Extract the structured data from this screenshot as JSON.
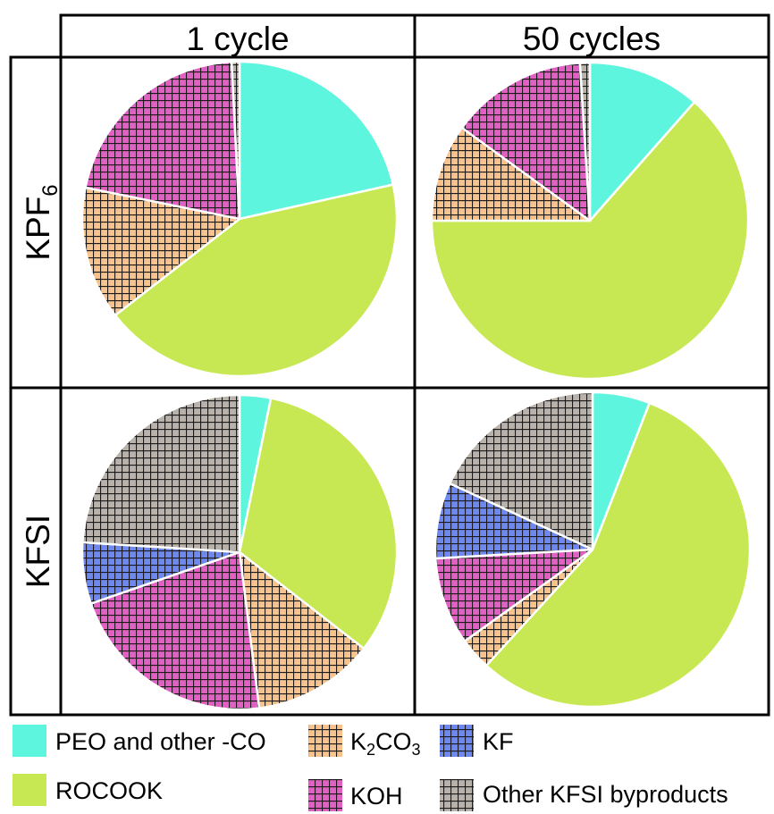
{
  "columns": [
    "1 cycle",
    "50 cycles"
  ],
  "rows": [
    {
      "label_main": "KPF",
      "label_sub": "6"
    },
    {
      "label_main": "KFSI",
      "label_sub": ""
    }
  ],
  "categories": [
    {
      "key": "peo",
      "label": "PEO and other -CO",
      "color": "#5df5dd",
      "pattern": "none"
    },
    {
      "key": "rocook",
      "label": "ROCOOK",
      "color": "#c7e852",
      "pattern": "none"
    },
    {
      "key": "k2co3",
      "label_main": "K",
      "label_sub1": "2",
      "label_mid": "CO",
      "label_sub2": "3",
      "color": "#f7c28b",
      "pattern": "grid"
    },
    {
      "key": "koh",
      "label": "KOH",
      "color": "#e25fc4",
      "pattern": "grid"
    },
    {
      "key": "kf",
      "label": "KF",
      "color": "#6f87f0",
      "pattern": "grid"
    },
    {
      "key": "other",
      "label": "Other KFSI byproducts",
      "color": "#b9b2aa",
      "pattern": "grid"
    }
  ],
  "chart_data": [
    {
      "type": "pie",
      "row": "KPF6",
      "column": "1 cycle",
      "slices": [
        {
          "name": "PEO and other -CO",
          "value": 21.5
        },
        {
          "name": "ROCOOK",
          "value": 43.0
        },
        {
          "name": "K2CO3",
          "value": 13.7
        },
        {
          "name": "KOH",
          "value": 21.0
        },
        {
          "name": "KF",
          "value": 0.0
        },
        {
          "name": "Other KFSI byproducts",
          "value": 0.8
        }
      ]
    },
    {
      "type": "pie",
      "row": "KPF6",
      "column": "50 cycles",
      "slices": [
        {
          "name": "PEO and other -CO",
          "value": 11.5
        },
        {
          "name": "ROCOOK",
          "value": 63.5
        },
        {
          "name": "K2CO3",
          "value": 10.0
        },
        {
          "name": "KOH",
          "value": 14.0
        },
        {
          "name": "KF",
          "value": 0.0
        },
        {
          "name": "Other KFSI byproducts",
          "value": 1.0
        }
      ]
    },
    {
      "type": "pie",
      "row": "KFSI",
      "column": "1 cycle",
      "slices": [
        {
          "name": "PEO and other -CO",
          "value": 3.2
        },
        {
          "name": "ROCOOK",
          "value": 32.3
        },
        {
          "name": "K2CO3",
          "value": 12.5
        },
        {
          "name": "KOH",
          "value": 21.7
        },
        {
          "name": "KF",
          "value": 6.3
        },
        {
          "name": "Other KFSI byproducts",
          "value": 24.0
        }
      ]
    },
    {
      "type": "pie",
      "row": "KFSI",
      "column": "50 cycles",
      "slices": [
        {
          "name": "PEO and other -CO",
          "value": 5.9
        },
        {
          "name": "ROCOOK",
          "value": 55.9
        },
        {
          "name": "K2CO3",
          "value": 3.3
        },
        {
          "name": "KOH",
          "value": 9.0
        },
        {
          "name": "KF",
          "value": 7.8
        },
        {
          "name": "Other KFSI byproducts",
          "value": 18.1
        }
      ]
    }
  ]
}
